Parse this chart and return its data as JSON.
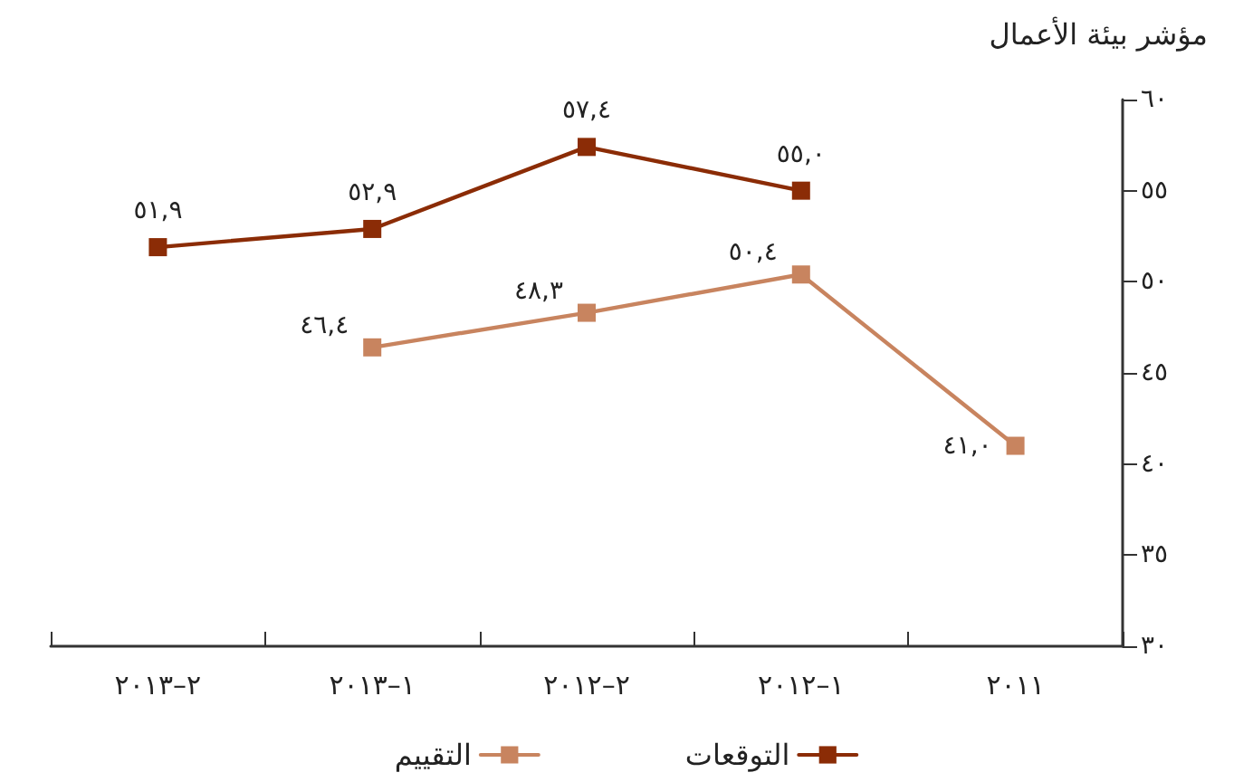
{
  "chart_data": {
    "type": "line",
    "ylabel": "مؤشر بيئة الأعمال",
    "categories": [
      "٢–٢٠١٣",
      "١–٢٠١٣",
      "٢–٢٠١٢",
      "١–٢٠١٢",
      "٢٠١١"
    ],
    "series": [
      {
        "name": "التوقعات",
        "color": "#8b2c06",
        "values": [
          51.9,
          52.9,
          57.4,
          55.0,
          null
        ],
        "value_labels": [
          "٥١,٩",
          "٥٢,٩",
          "٥٧,٤",
          "٥٥,٠",
          null
        ]
      },
      {
        "name": "التقييم",
        "color": "#c8845f",
        "values": [
          null,
          46.4,
          48.3,
          50.4,
          41.0
        ],
        "value_labels": [
          null,
          "٤٦,٤",
          "٤٨,٣",
          "٥٠,٤",
          "٤١,٠"
        ]
      }
    ],
    "ylim": [
      30,
      60
    ],
    "yticks": [
      {
        "value": 30,
        "label": "٣٠"
      },
      {
        "value": 35,
        "label": "٣٥"
      },
      {
        "value": 40,
        "label": "٤٠"
      },
      {
        "value": 45,
        "label": "٤٥"
      },
      {
        "value": 50,
        "label": "٥٠"
      },
      {
        "value": 55,
        "label": "٥٥"
      },
      {
        "value": 60,
        "label": "٦٠"
      }
    ],
    "marker": "square",
    "line_style": "solid",
    "grid": false,
    "legend": "bottom"
  }
}
